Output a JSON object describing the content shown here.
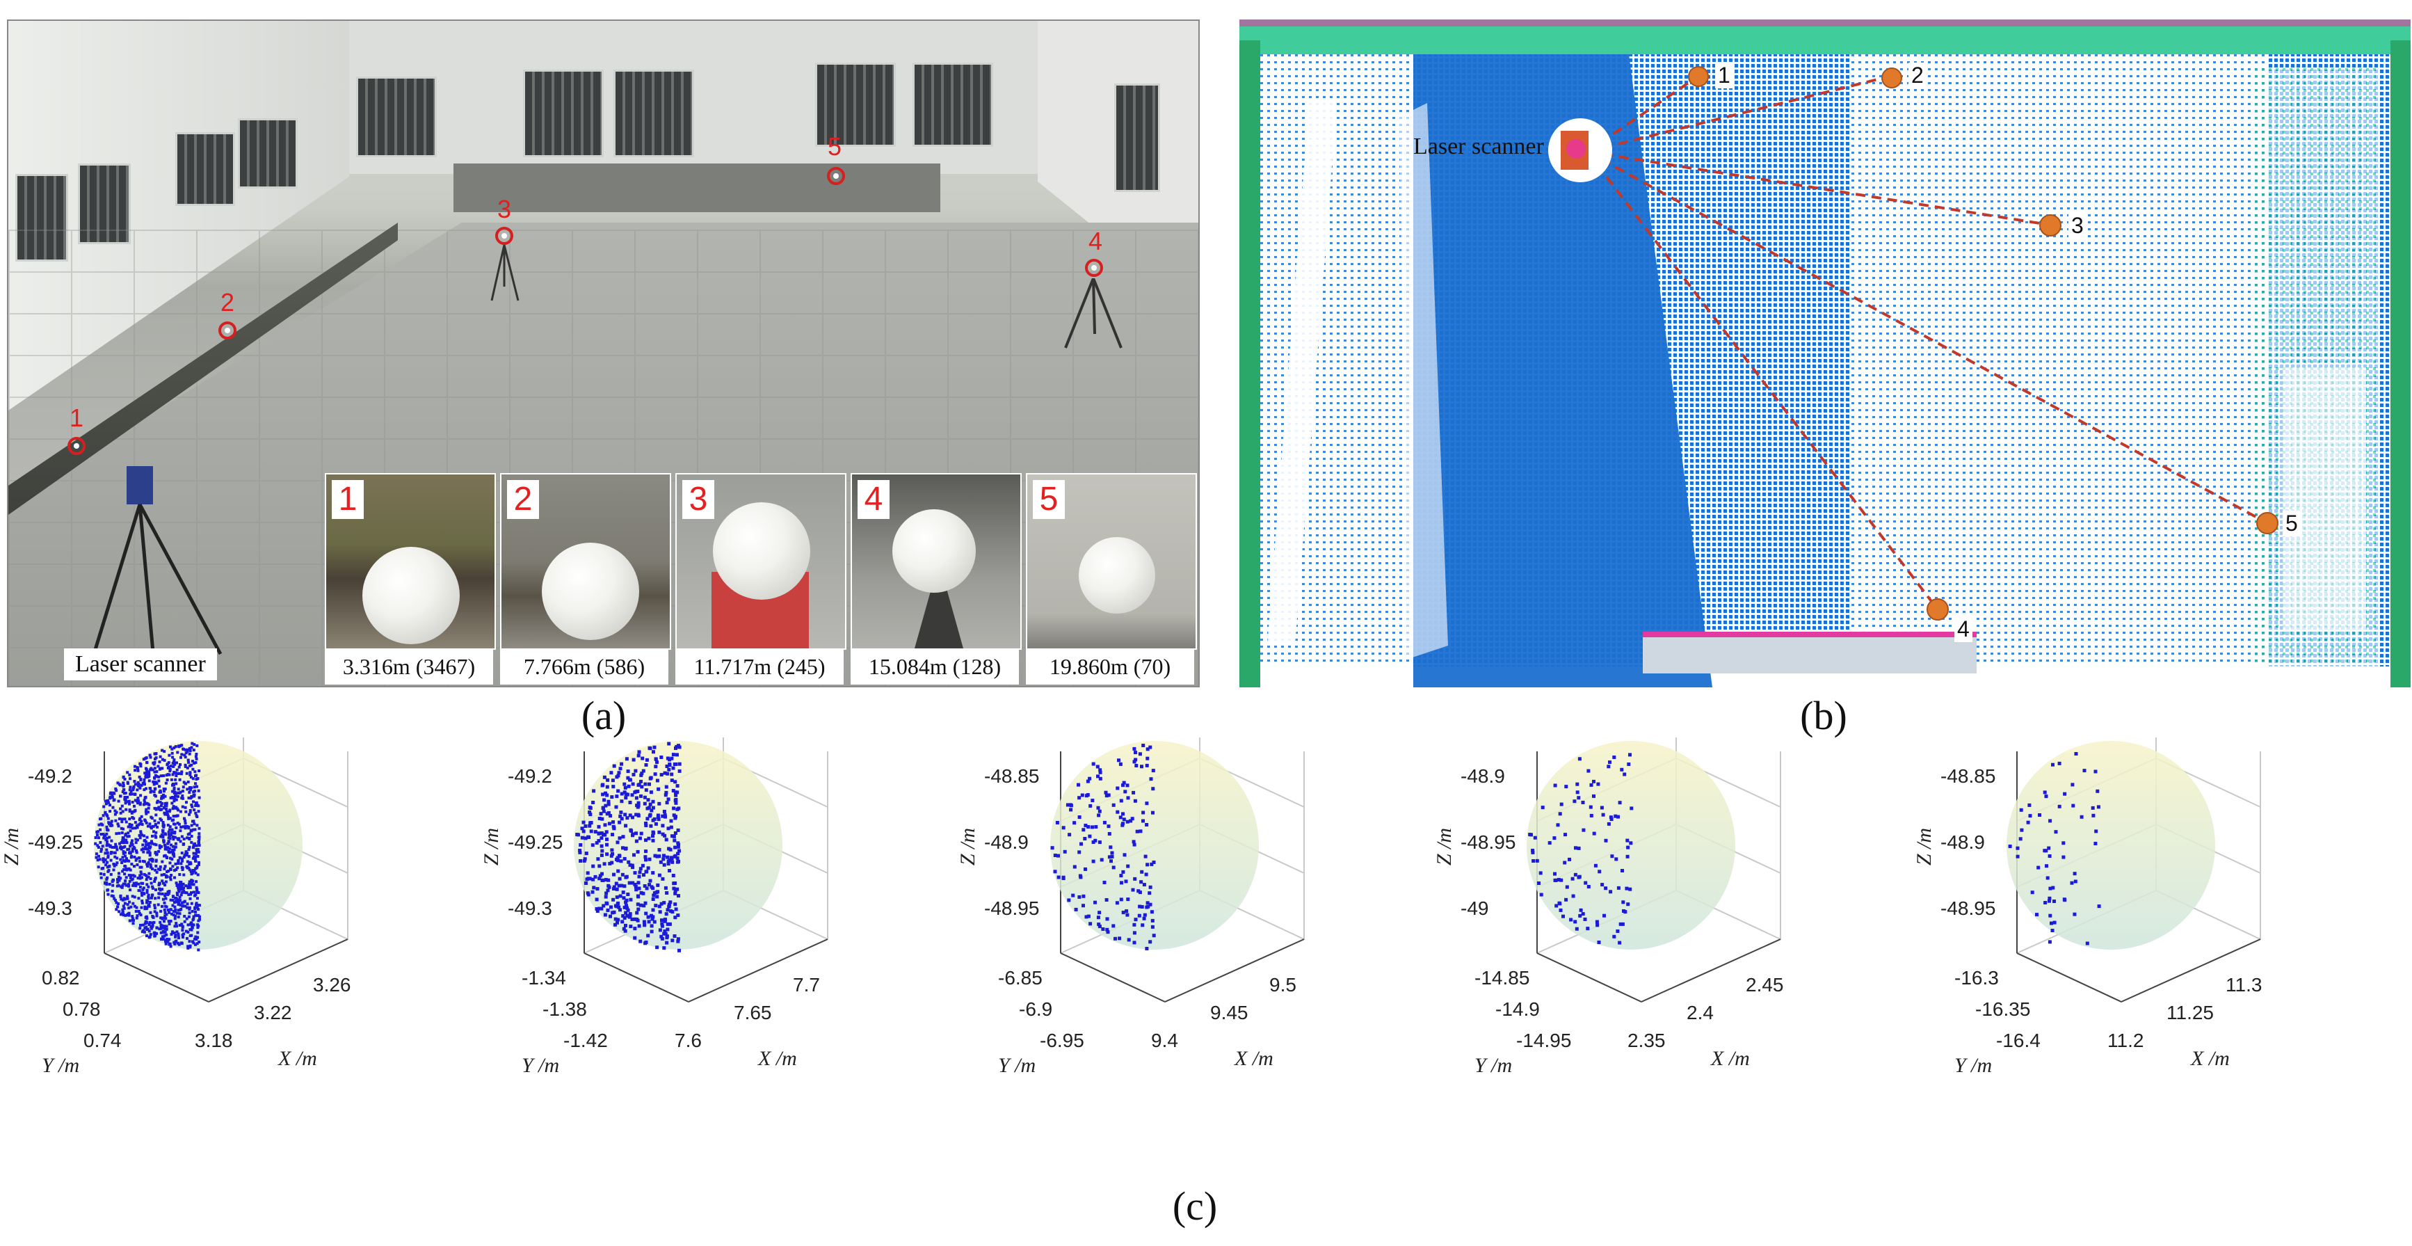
{
  "captions": {
    "a": "(a)",
    "b": "(b)",
    "c": "(c)"
  },
  "panel_a": {
    "scanner_label": "Laser scanner",
    "markers": [
      "1",
      "2",
      "3",
      "4",
      "5"
    ],
    "insets": [
      {
        "num": "1",
        "distance": "3.316m (3467)"
      },
      {
        "num": "2",
        "distance": "7.766m (586)"
      },
      {
        "num": "3",
        "distance": "11.717m (245)"
      },
      {
        "num": "4",
        "distance": "15.084m (128)"
      },
      {
        "num": "5",
        "distance": "19.860m (70)"
      }
    ],
    "colors": {
      "marker": "#d42020",
      "sphere": "#f2f2ee"
    }
  },
  "panel_b": {
    "scanner_label": "Laser scanner",
    "targets": [
      "1",
      "2",
      "3",
      "4",
      "5"
    ],
    "colors": {
      "points": "#1a72d6",
      "ray": "#c0392b",
      "target": "#e07a2a"
    }
  },
  "panel_c": {
    "plots": [
      {
        "zlabel": "Z /m",
        "ylabel": "Y /m",
        "xlabel": "X /m",
        "zticks": [
          "-49.2",
          "-49.25",
          "-49.3"
        ],
        "yticks": [
          "0.82",
          "0.78",
          "0.74"
        ],
        "xticks": [
          "3.18",
          "3.22",
          "3.26"
        ],
        "density": "dense"
      },
      {
        "zlabel": "Z /m",
        "ylabel": "Y /m",
        "xlabel": "X /m",
        "zticks": [
          "-49.2",
          "-49.25",
          "-49.3"
        ],
        "yticks": [
          "-1.34",
          "-1.38",
          "-1.42"
        ],
        "xticks": [
          "7.6",
          "7.65",
          "7.7"
        ],
        "density": "medium"
      },
      {
        "zlabel": "Z /m",
        "ylabel": "Y /m",
        "xlabel": "X /m",
        "zticks": [
          "-48.85",
          "-48.9",
          "-48.95"
        ],
        "yticks": [
          "-6.85",
          "-6.9",
          "-6.95"
        ],
        "xticks": [
          "9.4",
          "9.45",
          "9.5"
        ],
        "density": "sparse"
      },
      {
        "zlabel": "Z /m",
        "ylabel": "Y /m",
        "xlabel": "X /m",
        "zticks": [
          "-48.9",
          "-48.95",
          "-49"
        ],
        "yticks": [
          "-14.85",
          "-14.9",
          "-14.95"
        ],
        "xticks": [
          "2.35",
          "2.4",
          "2.45"
        ],
        "density": "sparser"
      },
      {
        "zlabel": "Z /m",
        "ylabel": "Y /m",
        "xlabel": "X /m",
        "zticks": [
          "-48.85",
          "-48.9",
          "-48.95"
        ],
        "yticks": [
          "-16.3",
          "-16.35",
          "-16.4"
        ],
        "xticks": [
          "11.2",
          "11.25",
          "11.3"
        ],
        "density": "sparsest"
      }
    ],
    "colors": {
      "points": "#1a1ad8",
      "sphere_top": "#f6f3c8",
      "sphere_bottom": "#cfe6dc"
    }
  }
}
